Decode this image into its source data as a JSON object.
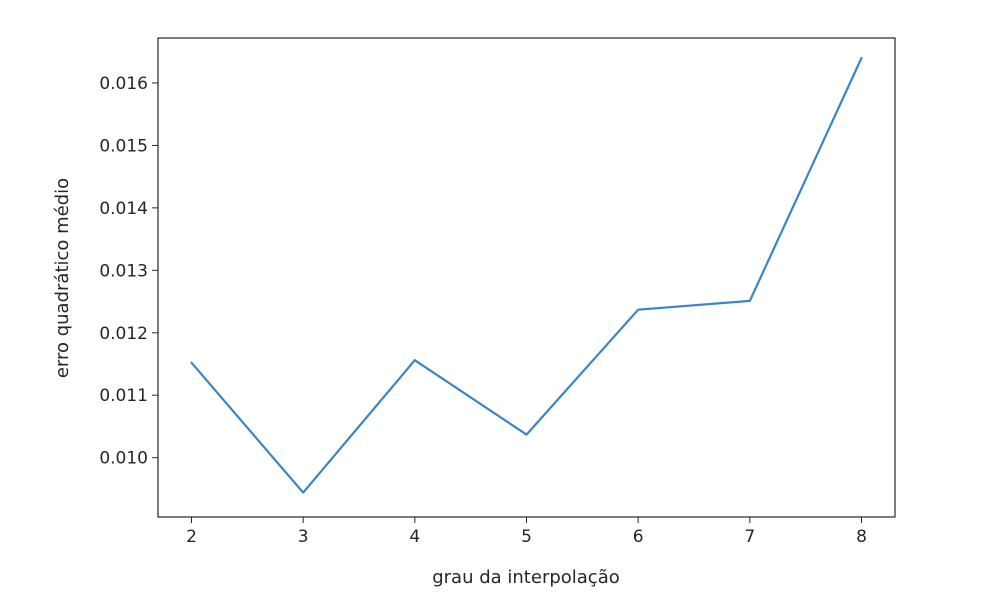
{
  "chart_data": {
    "type": "line",
    "title": "",
    "xlabel": "grau da interpolação",
    "ylabel": "erro quadrático médio",
    "x": [
      2,
      3,
      4,
      5,
      6,
      7,
      8
    ],
    "series": [
      {
        "values": [
          0.01152,
          0.00944,
          0.01156,
          0.01037,
          0.01237,
          0.01251,
          0.0164
        ],
        "color": "#3a86c4"
      }
    ],
    "xlim": [
      1.7,
      8.3
    ],
    "ylim": [
      0.00905,
      0.01672
    ],
    "xticks": [
      "2",
      "3",
      "4",
      "5",
      "6",
      "7",
      "8"
    ],
    "yticks": [
      "0.010",
      "0.011",
      "0.012",
      "0.013",
      "0.014",
      "0.015",
      "0.016"
    ],
    "grid": false,
    "legend": "none"
  }
}
